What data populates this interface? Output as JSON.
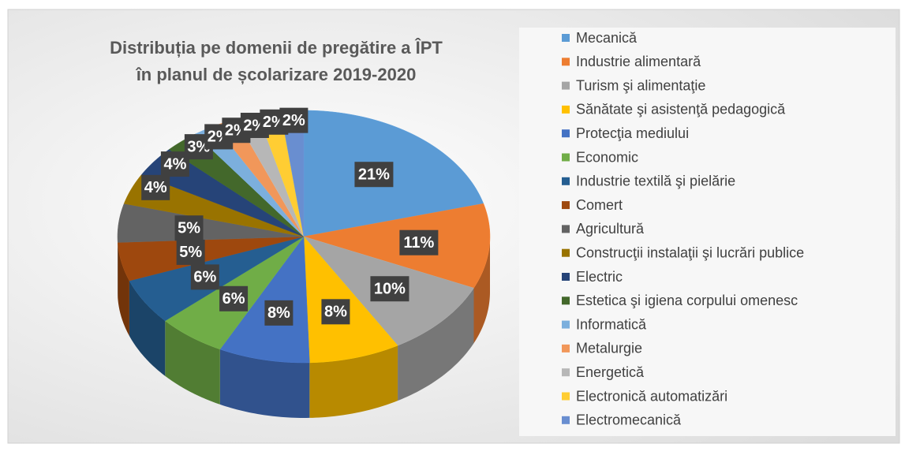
{
  "chart_data": {
    "type": "pie3d",
    "title": [
      "Distribuția pe domenii de pregătire a ÎPT",
      "în planul de școlarizare 2019-2020"
    ],
    "categories": [
      "Mecanică",
      "Industrie alimentară",
      "Turism şi alimentaţie",
      "Sănătate şi asistenţă pedagogică",
      "Protecţia mediului",
      "Economic",
      "Industrie textilă şi pielărie",
      "Comert",
      "Agricultură",
      "Construcţii instalaţii şi lucrări publice",
      "Electric",
      "Estetica şi igiena corpului omenesc",
      "Informatică",
      "Metalurgie",
      "Energetică",
      "Electronică automatizări",
      "Electromecanică"
    ],
    "values": [
      21,
      11,
      10,
      8,
      8,
      6,
      6,
      5,
      5,
      4,
      4,
      3,
      2,
      2,
      2,
      2,
      2
    ],
    "value_labels": [
      "21%",
      "11%",
      "10%",
      "8%",
      "8%",
      "6%",
      "6%",
      "5%",
      "5%",
      "4%",
      "4%",
      "3%",
      "2%",
      "2%",
      "2%",
      "2%",
      "2%"
    ],
    "colors": [
      "#5b9bd5",
      "#ed7d31",
      "#a5a5a5",
      "#ffc000",
      "#4472c4",
      "#70ad47",
      "#255e91",
      "#9e480e",
      "#636363",
      "#997300",
      "#264478",
      "#43682b",
      "#7cafdd",
      "#f1975a",
      "#b7b7b7",
      "#ffcd33",
      "#698ed0"
    ],
    "legend": "right"
  }
}
